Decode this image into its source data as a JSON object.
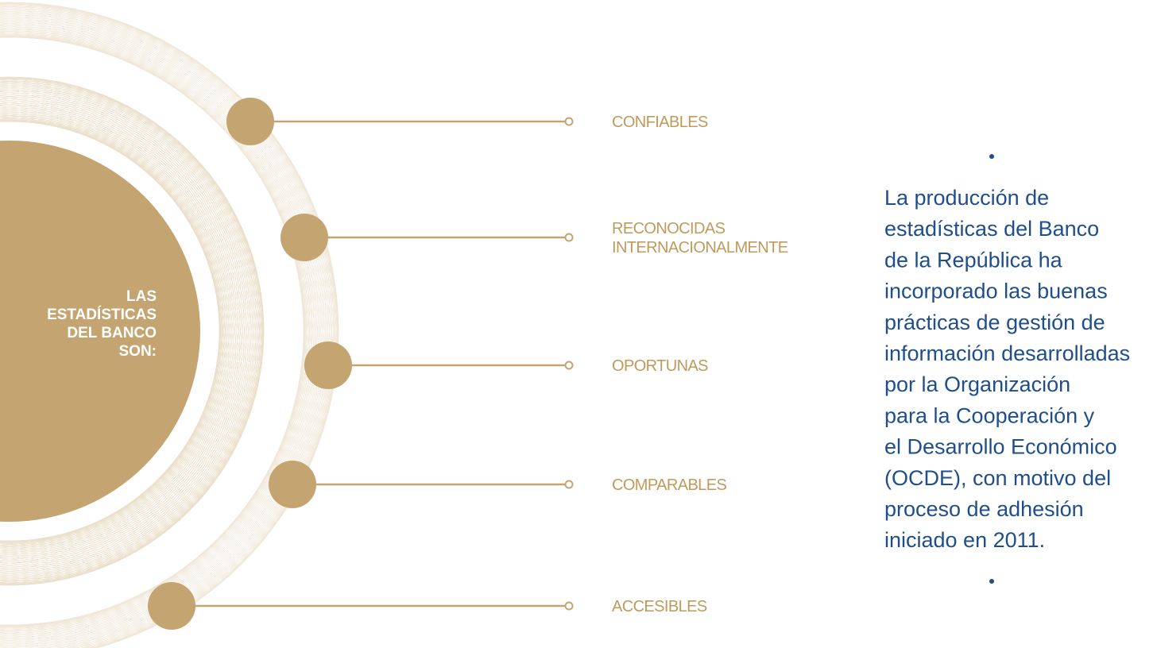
{
  "center_label": {
    "lines": [
      "LAS",
      "ESTADÍSTICAS",
      "DEL BANCO",
      "SON:"
    ]
  },
  "items": [
    {
      "lines": [
        "CONFIABLES"
      ]
    },
    {
      "lines": [
        "RECONOCIDAS",
        "INTERNACIONALMENTE"
      ]
    },
    {
      "lines": [
        "OPORTUNAS"
      ]
    },
    {
      "lines": [
        "COMPARABLES"
      ]
    },
    {
      "lines": [
        "ACCESIBLES"
      ]
    }
  ],
  "description": {
    "lines": [
      "La producción de",
      "estadísticas del Banco",
      "de la República ha",
      "incorporado las buenas",
      "prácticas de gestión de",
      "información desarrolladas",
      "por la Organización",
      "para la Cooperación y",
      "el Desarrollo Económico",
      "(OCDE), con motivo del",
      "proceso de adhesión",
      "iniciado en 2011."
    ]
  }
}
